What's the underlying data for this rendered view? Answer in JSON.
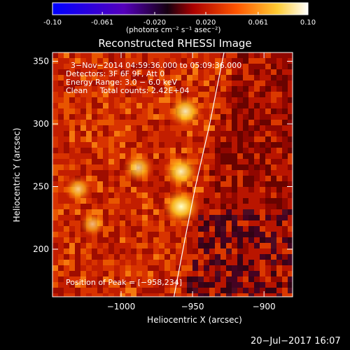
{
  "colorbar": {
    "ticks": [
      "-0.10",
      "-0.061",
      "-0.020",
      "0.020",
      "0.061",
      "0.10"
    ],
    "tick_values": [
      -0.1,
      -0.061,
      -0.02,
      0.02,
      0.061,
      0.1
    ],
    "range": [
      -0.1,
      0.1
    ],
    "unit_label": "(photons cm⁻² s⁻¹ asec⁻²)",
    "colors": [
      "#0000ff",
      "#6600cc",
      "#1a001a",
      "#cc0000",
      "#ff6600",
      "#ffff66",
      "#ffffff"
    ]
  },
  "chart_data": {
    "type": "heatmap",
    "title": "Reconstructed RHESSI Image",
    "xlabel": "Heliocentric X (arcsec)",
    "ylabel": "Heliocentric Y (arcsec)",
    "xlim": [
      -1048,
      -880
    ],
    "ylim": [
      162,
      357
    ],
    "x_ticks": [
      -1000,
      -950,
      -900
    ],
    "x_tick_labels": [
      "−1000",
      "−950",
      "−900"
    ],
    "y_ticks": [
      200,
      250,
      300,
      350
    ],
    "y_tick_labels": [
      "200",
      "250",
      "300",
      "350"
    ],
    "annotations": [
      "3−Nov−2014 04:59:36.000 to 05:09:36.000",
      "Detectors: 3F 6F 9F, Att 0",
      "Energy Range: 3.0 − 6.0 keV",
      "Clean     Total counts: 2.42E+04"
    ],
    "peak_label": "Position of Peak = [−958,234]",
    "peak_position": [
      -958,
      234
    ],
    "bright_sources": [
      {
        "x": -958,
        "y": 234,
        "level": 1.0
      },
      {
        "x": -958,
        "y": 262,
        "level": 0.85
      },
      {
        "x": -955,
        "y": 310,
        "level": 0.8
      },
      {
        "x": -988,
        "y": 265,
        "level": 0.6
      },
      {
        "x": -1030,
        "y": 248,
        "level": 0.45
      },
      {
        "x": -1020,
        "y": 220,
        "level": 0.35
      }
    ],
    "limb_curve": [
      [
        -963,
        162
      ],
      [
        -955,
        210
      ],
      [
        -948,
        250
      ],
      [
        -938,
        300
      ],
      [
        -928,
        357
      ]
    ]
  },
  "footer": {
    "timestamp": "20−Jul−2017 16:07"
  }
}
